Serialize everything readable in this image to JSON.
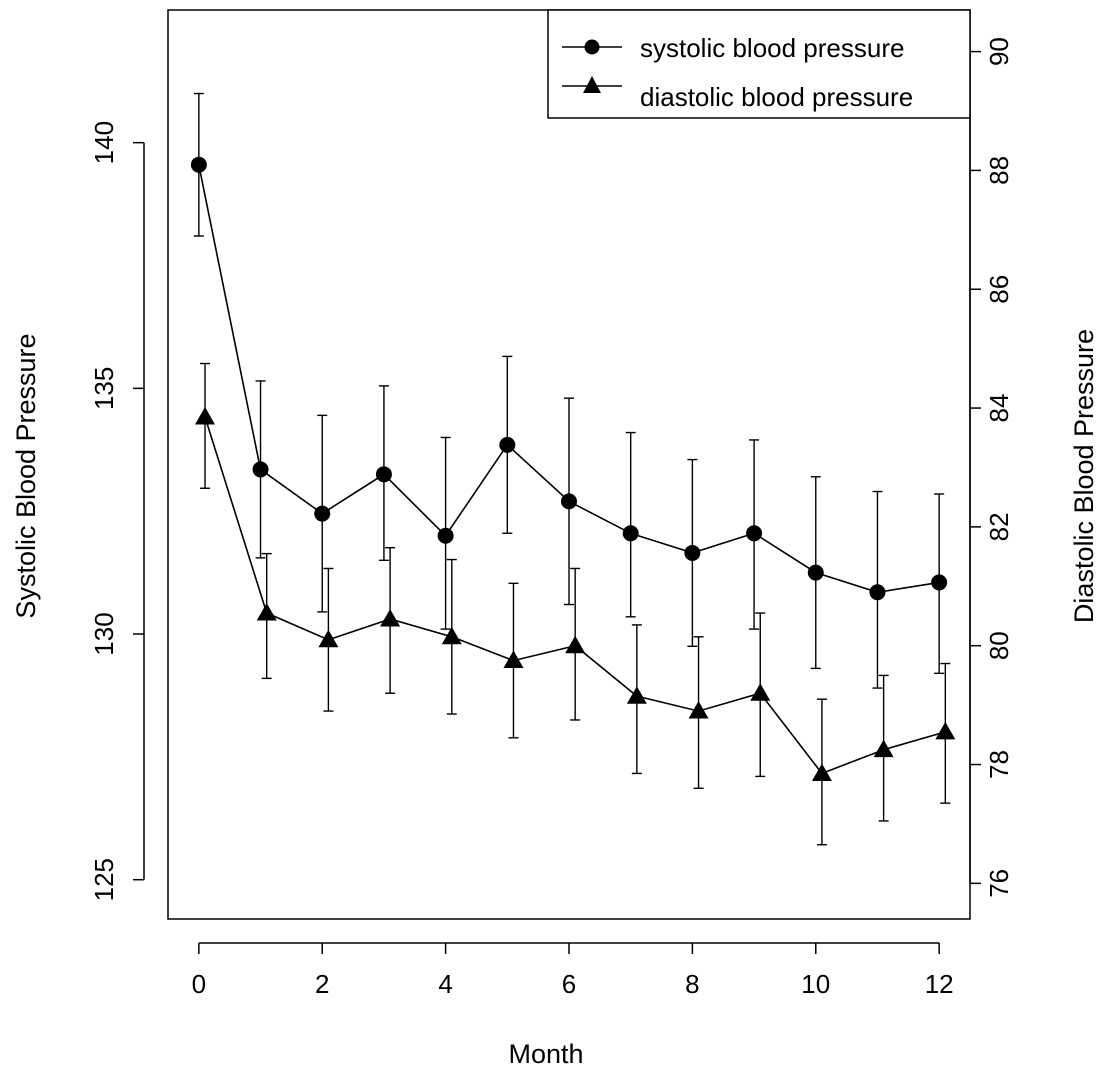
{
  "chart_data": {
    "type": "line",
    "title": "",
    "xlabel": "Month",
    "ylabel_left": "Systolic Blood Pressure",
    "ylabel_right": "Diastolic Blood Pressure",
    "x": [
      0,
      1,
      2,
      3,
      4,
      5,
      6,
      7,
      8,
      9,
      10,
      11,
      12
    ],
    "xlim": [
      -0.5,
      12.5
    ],
    "xticks": [
      0,
      2,
      4,
      6,
      8,
      10,
      12
    ],
    "ylim_left": [
      124.2,
      142.7
    ],
    "yticks_left": [
      125,
      130,
      135,
      140
    ],
    "ylim_right": [
      75.4,
      90.7
    ],
    "yticks_right": [
      76,
      78,
      80,
      82,
      84,
      86,
      88,
      90
    ],
    "grid": false,
    "legend_position": "top-right",
    "series": [
      {
        "name": "systolic blood pressure",
        "axis": "left",
        "marker": "circle",
        "color": "#000000",
        "values": [
          139.55,
          133.35,
          132.45,
          133.25,
          132.0,
          133.85,
          132.7,
          132.05,
          131.65,
          132.05,
          131.25,
          130.85,
          131.05
        ],
        "err_low": [
          138.1,
          131.55,
          130.45,
          131.5,
          130.1,
          132.05,
          130.6,
          130.35,
          129.75,
          130.1,
          129.3,
          128.9,
          129.2
        ],
        "err_high": [
          141.0,
          135.15,
          134.45,
          135.05,
          134.0,
          135.65,
          134.8,
          134.1,
          133.55,
          133.95,
          133.2,
          132.9,
          132.85
        ]
      },
      {
        "name": "diastolic blood pressure",
        "axis": "right",
        "marker": "triangle",
        "color": "#000000",
        "values": [
          83.85,
          80.55,
          80.1,
          80.45,
          80.15,
          79.75,
          80.0,
          79.15,
          78.9,
          79.2,
          77.85,
          78.25,
          78.55
        ],
        "err_low": [
          82.65,
          79.45,
          78.9,
          79.2,
          78.85,
          78.45,
          78.75,
          77.85,
          77.6,
          77.8,
          76.65,
          77.05,
          77.35
        ],
        "err_high": [
          84.75,
          81.55,
          81.3,
          81.65,
          81.45,
          81.05,
          81.3,
          80.35,
          80.15,
          80.55,
          79.1,
          79.5,
          79.7
        ]
      }
    ]
  }
}
